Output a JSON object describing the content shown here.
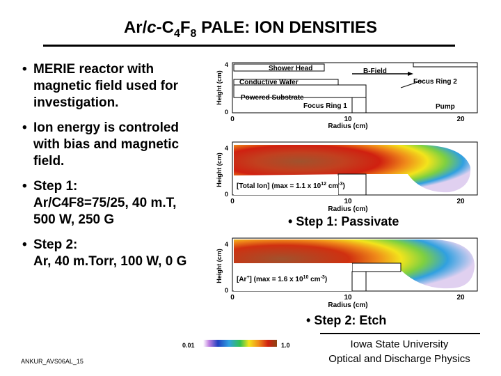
{
  "title": {
    "prefix": "Ar/",
    "italic": "c",
    "mid": "-C",
    "sub1": "4",
    "f": "F",
    "sub2": "8",
    "suffix": " PALE: ION DENSITIES"
  },
  "bullets": [
    {
      "lines": [
        "MERIE reactor with",
        "magnetic field used for",
        "investigation."
      ]
    },
    {
      "lines": [
        "Ion energy is controled",
        "with bias and magnetic",
        "field."
      ]
    },
    {
      "lines": [
        "Step 1:",
        " Ar/C4F8=75/25, 40 m.T,",
        "500 W, 250 G"
      ]
    },
    {
      "lines": [
        "Step 2:",
        "Ar, 40 m.Torr, 100 W, 0 G"
      ]
    }
  ],
  "bullet_glyph": "•",
  "diagram1": {
    "y_label": "Height (cm)",
    "x_label": "Radius (cm)",
    "x_ticks": [
      "0",
      "10",
      "20"
    ],
    "y_ticks": [
      "4",
      "0"
    ],
    "labels": {
      "shower_head": "Shower Head",
      "b_field": "B-Field",
      "conductive_wafer": "Conductive Wafer",
      "focus_ring_2": "Focus Ring 2",
      "powered_substrate": "Powered Substrate",
      "focus_ring_1": "Focus Ring 1",
      "pump": "Pump"
    }
  },
  "plot1": {
    "y_label": "Height (cm)",
    "x_label": "Radius (cm)",
    "x_ticks": [
      "0",
      "10",
      "20"
    ],
    "y_ticks": [
      "4",
      "0"
    ],
    "annotation": "[Total Ion] (max = 1.1 x 10",
    "annotation_exp": "12",
    "annotation_unit": " cm",
    "annotation_unit_exp": "-3",
    "annotation_close": ")"
  },
  "plot2": {
    "y_label": "Height (cm)",
    "x_label": "Radius (cm)",
    "x_ticks": [
      "0",
      "10",
      "20"
    ],
    "y_ticks": [
      "4",
      "0"
    ],
    "annotation": "[Ar",
    "annotation_sup": "+",
    "annotation_rest": "] (max = 1.6 x 10",
    "annotation_exp": "10",
    "annotation_unit": " cm",
    "annotation_unit_exp": "-3",
    "annotation_close": ")"
  },
  "caption1": "Step 1: Passivate",
  "caption2": "Step 2: Etch",
  "colorbar": {
    "min": "0.01",
    "max": "1.0"
  },
  "footer_left": "ANKUR_AVS06AL_15",
  "footer_right": [
    "Iowa State University",
    "Optical and Discharge Physics"
  ]
}
